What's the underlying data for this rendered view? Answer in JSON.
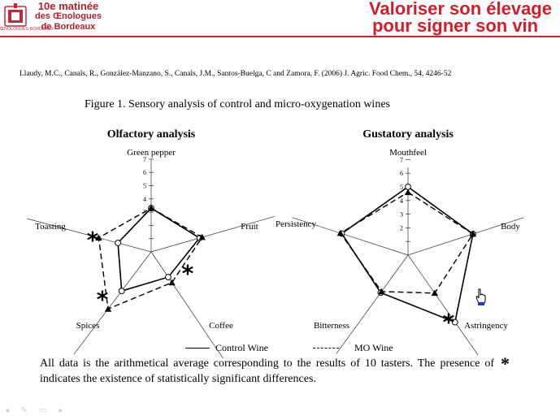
{
  "header": {
    "matinee_line1": "10e matinée",
    "matinee_line2": "des Œnologues",
    "matinee_line3": "de Bordeaux",
    "logo_text": "ŒNOLOGUES BORDEAUX",
    "banner_line1": "Valoriser son élevage",
    "banner_line2": "pour signer son vin",
    "brand_color": "#d11e2b"
  },
  "reference": "Llaudy, M.C., Canals, R., González-Manzano, S., Canals, J.M., Santos-Buelga, C and Zamora, F. (2006) J. Agric. Food Chem., 54, 4246-52",
  "figure_title": "Figure 1. Sensory analysis of control and micro-oxygenation wines",
  "legend": {
    "control": "Control Wine",
    "mo": "MO Wine"
  },
  "note": {
    "part1": "All data is the arithmetical average corresponding to the results of 10 tasters. The presence of",
    "part2": "indicates the existence of statistically significant differences.",
    "star": "*"
  },
  "chart_data": [
    {
      "type": "radar",
      "title": "Olfactory analysis",
      "axes": [
        "Green pepper",
        "Fruit",
        "Coffee",
        "Spices",
        "Toasting"
      ],
      "rlim": [
        0,
        7
      ],
      "ticks": [
        "1",
        "2",
        "3",
        "4",
        "5",
        "6",
        "7"
      ],
      "series": [
        {
          "name": "Control Wine",
          "values": [
            3.3,
            3.8,
            2.3,
            3.7,
            2.6
          ],
          "marker": "circle",
          "style": "solid"
        },
        {
          "name": "MO Wine",
          "values": [
            3.3,
            4.0,
            2.8,
            5.4,
            4.1
          ],
          "marker": "triangle",
          "style": "dashed"
        }
      ],
      "significant": [
        "Toasting",
        "Coffee",
        "Spices"
      ]
    },
    {
      "type": "radar",
      "title": "Gustatory analysis",
      "axes": [
        "Mouthfeel",
        "Body",
        "Astringency",
        "Bitterness",
        "Persistency"
      ],
      "rlim": [
        0,
        7
      ],
      "ticks": [
        "1",
        "2",
        "3",
        "4",
        "5",
        "6",
        "7"
      ],
      "series": [
        {
          "name": "Control Wine",
          "values": [
            5.0,
            5.0,
            6.0,
            3.4,
            5.1
          ],
          "marker": "circle",
          "style": "solid"
        },
        {
          "name": "MO Wine",
          "values": [
            4.6,
            5.0,
            3.4,
            3.3,
            5.2
          ],
          "marker": "triangle",
          "style": "dashed"
        }
      ],
      "significant": [
        "Astringency"
      ]
    }
  ]
}
